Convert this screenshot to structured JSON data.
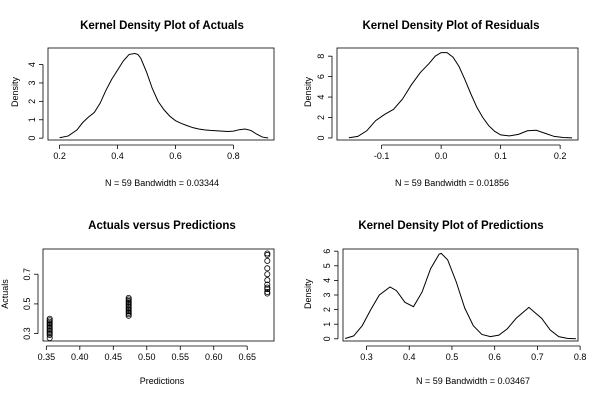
{
  "chart_data": [
    {
      "type": "line",
      "title": "Kernel Density Plot of Actuals",
      "xlabel": "N = 59   Bandwidth = 0.03344",
      "ylabel": "Density",
      "xlim": [
        0.16,
        0.94
      ],
      "ylim": [
        -0.1,
        4.9
      ],
      "xticks": [
        0.2,
        0.4,
        0.6,
        0.8
      ],
      "xtick_labels": [
        "0.2",
        "0.4",
        "0.6",
        "0.8"
      ],
      "yticks": [
        0,
        1,
        2,
        3,
        4
      ],
      "ytick_labels": [
        "0",
        "1",
        "2",
        "3",
        "4"
      ],
      "x": [
        0.2,
        0.23,
        0.26,
        0.28,
        0.3,
        0.32,
        0.34,
        0.36,
        0.38,
        0.4,
        0.42,
        0.44,
        0.46,
        0.47,
        0.48,
        0.5,
        0.52,
        0.54,
        0.56,
        0.58,
        0.6,
        0.62,
        0.64,
        0.66,
        0.68,
        0.7,
        0.72,
        0.74,
        0.76,
        0.78,
        0.8,
        0.82,
        0.84,
        0.86,
        0.88,
        0.9,
        0.92
      ],
      "y": [
        0.02,
        0.12,
        0.45,
        0.85,
        1.15,
        1.4,
        1.9,
        2.6,
        3.2,
        3.7,
        4.2,
        4.55,
        4.6,
        4.55,
        4.35,
        3.6,
        2.7,
        2.0,
        1.55,
        1.2,
        0.95,
        0.8,
        0.68,
        0.57,
        0.5,
        0.45,
        0.42,
        0.4,
        0.38,
        0.36,
        0.38,
        0.46,
        0.5,
        0.42,
        0.22,
        0.06,
        0.01
      ]
    },
    {
      "type": "line",
      "title": "Kernel Density Plot of Residuals",
      "xlabel": "N = 59   Bandwidth = 0.01856",
      "ylabel": "Density",
      "xlim": [
        -0.175,
        0.23
      ],
      "ylim": [
        -0.2,
        8.8
      ],
      "xticks": [
        -0.1,
        0.0,
        0.1,
        0.2
      ],
      "xtick_labels": [
        "-0.1",
        "0.0",
        "0.1",
        "0.2"
      ],
      "yticks": [
        0,
        2,
        4,
        6,
        8
      ],
      "ytick_labels": [
        "0",
        "2",
        "4",
        "6",
        "8"
      ],
      "x": [
        -0.155,
        -0.14,
        -0.125,
        -0.11,
        -0.095,
        -0.08,
        -0.065,
        -0.05,
        -0.035,
        -0.02,
        -0.01,
        0.0,
        0.01,
        0.02,
        0.03,
        0.04,
        0.05,
        0.06,
        0.07,
        0.08,
        0.09,
        0.1,
        0.115,
        0.13,
        0.145,
        0.16,
        0.175,
        0.19,
        0.205,
        0.22
      ],
      "y": [
        0.02,
        0.15,
        0.7,
        1.7,
        2.3,
        2.8,
        3.8,
        5.2,
        6.4,
        7.3,
        8.0,
        8.35,
        8.35,
        7.9,
        7.0,
        5.7,
        4.3,
        3.0,
        2.0,
        1.2,
        0.65,
        0.3,
        0.2,
        0.35,
        0.7,
        0.75,
        0.45,
        0.15,
        0.04,
        0.01
      ]
    },
    {
      "type": "scatter",
      "title": "Actuals versus Predictions",
      "xlabel": "Predictions",
      "ylabel": "Actuals",
      "xlim": [
        0.345,
        0.69
      ],
      "ylim": [
        0.25,
        0.87
      ],
      "xticks": [
        0.35,
        0.4,
        0.45,
        0.5,
        0.55,
        0.6,
        0.65
      ],
      "xtick_labels": [
        "0.35",
        "0.40",
        "0.45",
        "0.50",
        "0.55",
        "0.60",
        "0.65"
      ],
      "yticks": [
        0.3,
        0.5,
        0.7
      ],
      "ytick_labels": [
        "0.3",
        "0.5",
        "0.7"
      ],
      "points": [
        [
          0.355,
          0.27
        ],
        [
          0.355,
          0.29
        ],
        [
          0.355,
          0.3
        ],
        [
          0.355,
          0.31
        ],
        [
          0.355,
          0.32
        ],
        [
          0.355,
          0.33
        ],
        [
          0.355,
          0.34
        ],
        [
          0.355,
          0.35
        ],
        [
          0.355,
          0.36
        ],
        [
          0.355,
          0.37
        ],
        [
          0.355,
          0.38
        ],
        [
          0.355,
          0.39
        ],
        [
          0.355,
          0.4
        ],
        [
          0.473,
          0.42
        ],
        [
          0.473,
          0.43
        ],
        [
          0.473,
          0.44
        ],
        [
          0.473,
          0.45
        ],
        [
          0.473,
          0.46
        ],
        [
          0.473,
          0.47
        ],
        [
          0.473,
          0.48
        ],
        [
          0.473,
          0.49
        ],
        [
          0.473,
          0.5
        ],
        [
          0.473,
          0.51
        ],
        [
          0.473,
          0.52
        ],
        [
          0.473,
          0.53
        ],
        [
          0.473,
          0.54
        ],
        [
          0.68,
          0.57
        ],
        [
          0.68,
          0.58
        ],
        [
          0.68,
          0.6
        ],
        [
          0.68,
          0.61
        ],
        [
          0.68,
          0.63
        ],
        [
          0.68,
          0.66
        ],
        [
          0.68,
          0.7
        ],
        [
          0.68,
          0.74
        ],
        [
          0.68,
          0.79
        ],
        [
          0.68,
          0.83
        ],
        [
          0.68,
          0.84
        ]
      ]
    },
    {
      "type": "line",
      "title": "Kernel Density Plot of Predictions",
      "xlabel": "N = 59   Bandwidth = 0.03467",
      "ylabel": "Density",
      "xlim": [
        0.245,
        0.795
      ],
      "ylim": [
        -0.15,
        6.15
      ],
      "xticks": [
        0.3,
        0.4,
        0.5,
        0.6,
        0.7,
        0.8
      ],
      "xtick_labels": [
        "0.3",
        "0.4",
        "0.5",
        "0.6",
        "0.7",
        "0.8"
      ],
      "yticks": [
        0,
        1,
        2,
        3,
        4,
        5,
        6
      ],
      "ytick_labels": [
        "0",
        "1",
        "2",
        "3",
        "4",
        "5",
        "6"
      ],
      "x": [
        0.25,
        0.27,
        0.29,
        0.31,
        0.33,
        0.355,
        0.37,
        0.39,
        0.41,
        0.43,
        0.45,
        0.47,
        0.475,
        0.49,
        0.51,
        0.53,
        0.55,
        0.57,
        0.59,
        0.61,
        0.63,
        0.65,
        0.68,
        0.71,
        0.73,
        0.75,
        0.77,
        0.79
      ],
      "y": [
        0.02,
        0.2,
        0.9,
        2.0,
        3.0,
        3.55,
        3.3,
        2.5,
        2.2,
        3.2,
        4.8,
        5.8,
        5.85,
        5.4,
        3.9,
        2.1,
        0.9,
        0.3,
        0.15,
        0.25,
        0.7,
        1.4,
        2.15,
        1.4,
        0.6,
        0.15,
        0.03,
        0.0
      ]
    }
  ]
}
